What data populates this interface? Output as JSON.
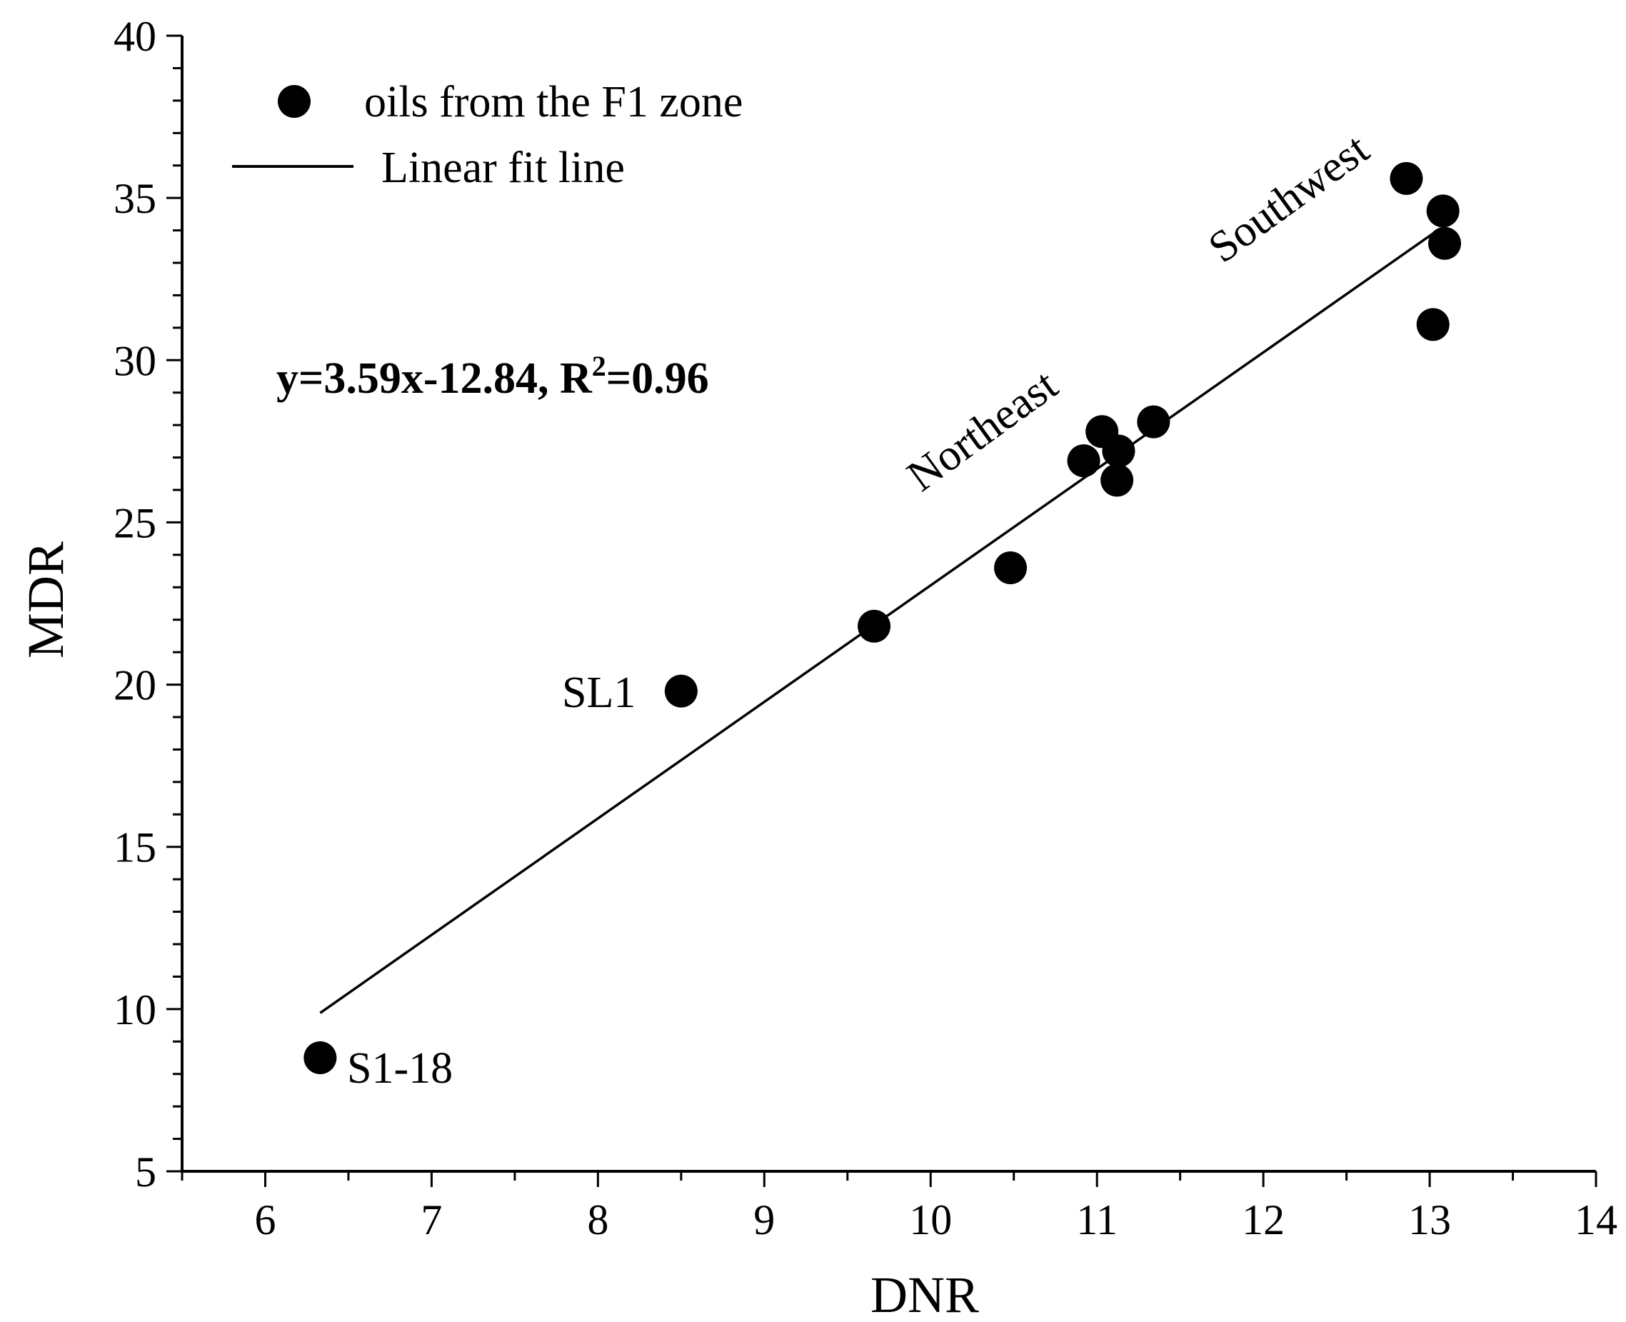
{
  "chart_data": {
    "type": "scatter",
    "title": "",
    "xlabel": "DNR",
    "ylabel": "MDR",
    "xlim": [
      5.5,
      14
    ],
    "ylim": [
      5,
      40
    ],
    "x_ticks": [
      6,
      7,
      8,
      9,
      10,
      11,
      12,
      13,
      14
    ],
    "y_ticks": [
      5,
      10,
      15,
      20,
      25,
      30,
      35,
      40
    ],
    "grid": false,
    "legend_position": "top-left",
    "series": [
      {
        "name": "oils from the F1 zone",
        "kind": "scatter",
        "x": [
          6.33,
          8.5,
          9.66,
          10.48,
          10.92,
          11.03,
          11.13,
          11.12,
          11.34,
          12.86,
          13.08,
          13.09,
          13.02
        ],
        "y": [
          8.5,
          19.8,
          21.8,
          23.6,
          26.9,
          27.8,
          27.2,
          26.3,
          28.1,
          35.6,
          34.6,
          33.6,
          31.1
        ]
      },
      {
        "name": "Linear fit line",
        "kind": "line",
        "x": [
          6.33,
          13.05
        ],
        "y": [
          9.88,
          34.01
        ]
      }
    ],
    "annotations": {
      "equation": {
        "main": "y=3.59x-12.84, R",
        "sup": "2",
        "tail": "=0.96"
      },
      "point_labels": [
        {
          "text": "SL1",
          "x": 8.5,
          "y": 19.8
        },
        {
          "text": "S1-18",
          "x": 6.33,
          "y": 8.5
        }
      ],
      "region_labels": [
        {
          "text": "Northeast"
        },
        {
          "text": "Southwest"
        }
      ]
    }
  }
}
